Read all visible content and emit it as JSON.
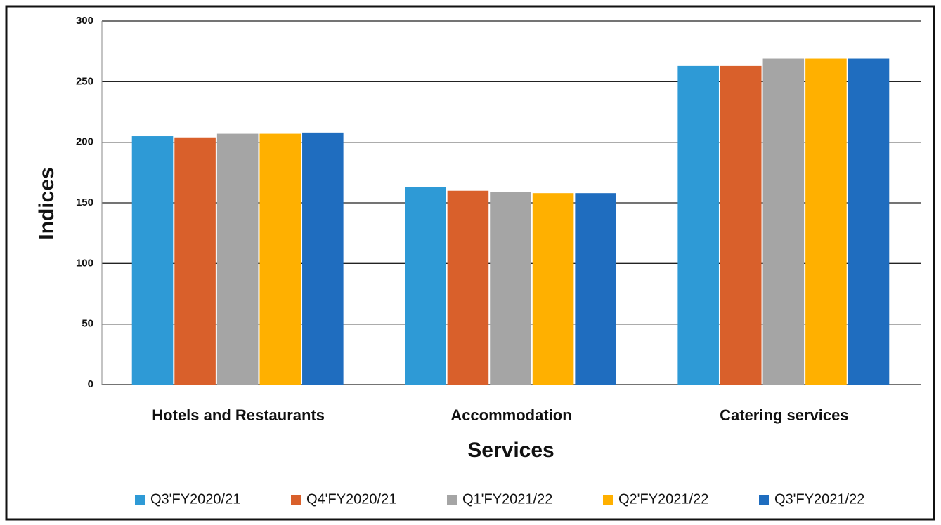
{
  "chart_data": {
    "type": "bar",
    "x_label": "Services",
    "y_label": "Indices",
    "categories": [
      "Hotels and Restaurants",
      "Accommodation",
      "Catering services"
    ],
    "series": [
      {
        "name": "Q3'FY2020/21",
        "color": "#2e9ad6",
        "values": [
          205,
          163,
          263
        ]
      },
      {
        "name": "Q4'FY2020/21",
        "color": "#d9602b",
        "values": [
          204,
          160,
          263
        ]
      },
      {
        "name": "Q1'FY2021/22",
        "color": "#a5a5a5",
        "values": [
          207,
          159,
          269
        ]
      },
      {
        "name": "Q2'FY2021/22",
        "color": "#ffb000",
        "values": [
          207,
          158,
          269
        ]
      },
      {
        "name": "Q3'FY2021/22",
        "color": "#1f6dbf",
        "values": [
          208,
          158,
          269
        ]
      }
    ],
    "ylim": [
      0,
      300
    ],
    "yticks": [
      0,
      50,
      100,
      150,
      200,
      250,
      300
    ],
    "grid": true,
    "legend": "bottom"
  }
}
